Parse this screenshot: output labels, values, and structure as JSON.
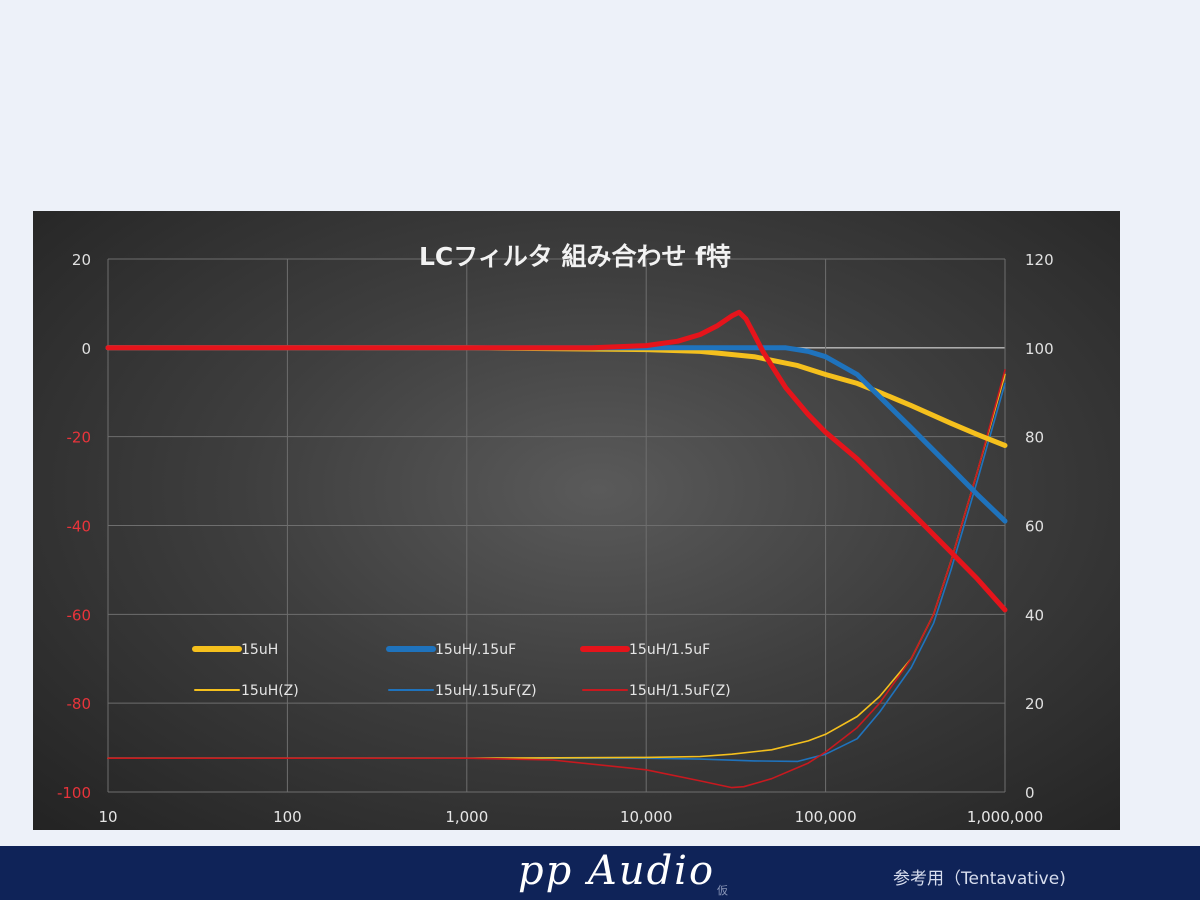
{
  "chart_data": {
    "type": "line",
    "title": "LCフィルタ 組み合わせ f特",
    "x_scale": "log",
    "xlim": [
      10,
      1000000
    ],
    "x_ticks": [
      "10",
      "100",
      "1,000",
      "10,000",
      "100,000",
      "1,000,000"
    ],
    "y_left": {
      "lim": [
        -100,
        20
      ],
      "ticks": [
        "20",
        "0",
        "-20",
        "-40",
        "-60",
        "-80",
        "-100"
      ]
    },
    "y_right": {
      "lim": [
        0,
        120
      ],
      "ticks": [
        "120",
        "100",
        "80",
        "60",
        "40",
        "20",
        "0"
      ]
    },
    "grid": true,
    "legend_position": "lower-left, inside plot",
    "series": [
      {
        "name": "15uH",
        "axis": "left",
        "color": "#f5c01d",
        "points": [
          [
            10,
            0
          ],
          [
            1000,
            0
          ],
          [
            10000,
            -0.4
          ],
          [
            20000,
            -0.8
          ],
          [
            40000,
            -2
          ],
          [
            70000,
            -4
          ],
          [
            100000,
            -6
          ],
          [
            150000,
            -8
          ],
          [
            200000,
            -10
          ],
          [
            300000,
            -13
          ],
          [
            500000,
            -17
          ],
          [
            700000,
            -19.5
          ],
          [
            1000000,
            -22
          ]
        ]
      },
      {
        "name": "15uH/.15uF",
        "axis": "left",
        "color": "#1f73bd",
        "points": [
          [
            10,
            0
          ],
          [
            1000,
            0
          ],
          [
            10000,
            0
          ],
          [
            30000,
            0
          ],
          [
            60000,
            0
          ],
          [
            80000,
            -0.8
          ],
          [
            100000,
            -2
          ],
          [
            150000,
            -6
          ],
          [
            200000,
            -11
          ],
          [
            300000,
            -18
          ],
          [
            500000,
            -27
          ],
          [
            700000,
            -33
          ],
          [
            1000000,
            -39
          ]
        ]
      },
      {
        "name": "15uH/1.5uF",
        "axis": "left",
        "color": "#e5141b",
        "points": [
          [
            10,
            0
          ],
          [
            1000,
            0
          ],
          [
            5000,
            0
          ],
          [
            10000,
            0.5
          ],
          [
            15000,
            1.5
          ],
          [
            20000,
            3
          ],
          [
            25000,
            5
          ],
          [
            30000,
            7.2
          ],
          [
            33000,
            8
          ],
          [
            36000,
            6.5
          ],
          [
            40000,
            3
          ],
          [
            45000,
            -1
          ],
          [
            50000,
            -4
          ],
          [
            60000,
            -9
          ],
          [
            80000,
            -15
          ],
          [
            100000,
            -19
          ],
          [
            150000,
            -25
          ],
          [
            200000,
            -30
          ],
          [
            300000,
            -37
          ],
          [
            500000,
            -46
          ],
          [
            700000,
            -52
          ],
          [
            1000000,
            -59
          ]
        ]
      },
      {
        "name": "15uH(Z)",
        "axis": "right",
        "color": "#f5c01d",
        "points": [
          [
            10,
            7.6
          ],
          [
            1000,
            7.6
          ],
          [
            10000,
            7.8
          ],
          [
            20000,
            8
          ],
          [
            30000,
            8.5
          ],
          [
            50000,
            9.5
          ],
          [
            80000,
            11.5
          ],
          [
            100000,
            13
          ],
          [
            150000,
            17
          ],
          [
            200000,
            21.5
          ],
          [
            300000,
            30
          ],
          [
            400000,
            40
          ],
          [
            500000,
            52
          ],
          [
            700000,
            72
          ],
          [
            1000000,
            94
          ]
        ]
      },
      {
        "name": "15uH/.15uF(Z)",
        "axis": "right",
        "color": "#1f73bd",
        "points": [
          [
            10,
            7.6
          ],
          [
            1000,
            7.6
          ],
          [
            10000,
            7.6
          ],
          [
            20000,
            7.4
          ],
          [
            40000,
            7
          ],
          [
            70000,
            6.9
          ],
          [
            100000,
            8.5
          ],
          [
            150000,
            12
          ],
          [
            200000,
            18
          ],
          [
            300000,
            28
          ],
          [
            400000,
            38
          ],
          [
            500000,
            50
          ],
          [
            700000,
            70
          ],
          [
            1000000,
            92
          ]
        ]
      },
      {
        "name": "15uH/1.5uF(Z)",
        "axis": "right",
        "color": "#c8191f",
        "points": [
          [
            10,
            7.6
          ],
          [
            1000,
            7.6
          ],
          [
            3000,
            7.2
          ],
          [
            10000,
            5
          ],
          [
            20000,
            2.5
          ],
          [
            30000,
            1
          ],
          [
            35000,
            1.2
          ],
          [
            50000,
            3
          ],
          [
            80000,
            6.5
          ],
          [
            100000,
            9
          ],
          [
            150000,
            14.5
          ],
          [
            200000,
            20
          ],
          [
            300000,
            30
          ],
          [
            400000,
            40
          ],
          [
            500000,
            52
          ],
          [
            700000,
            72
          ],
          [
            1000000,
            95
          ]
        ]
      }
    ]
  },
  "footer": {
    "brand": "pp Audio",
    "brand_sub": "仮",
    "note": "参考用（Tentavative)"
  }
}
